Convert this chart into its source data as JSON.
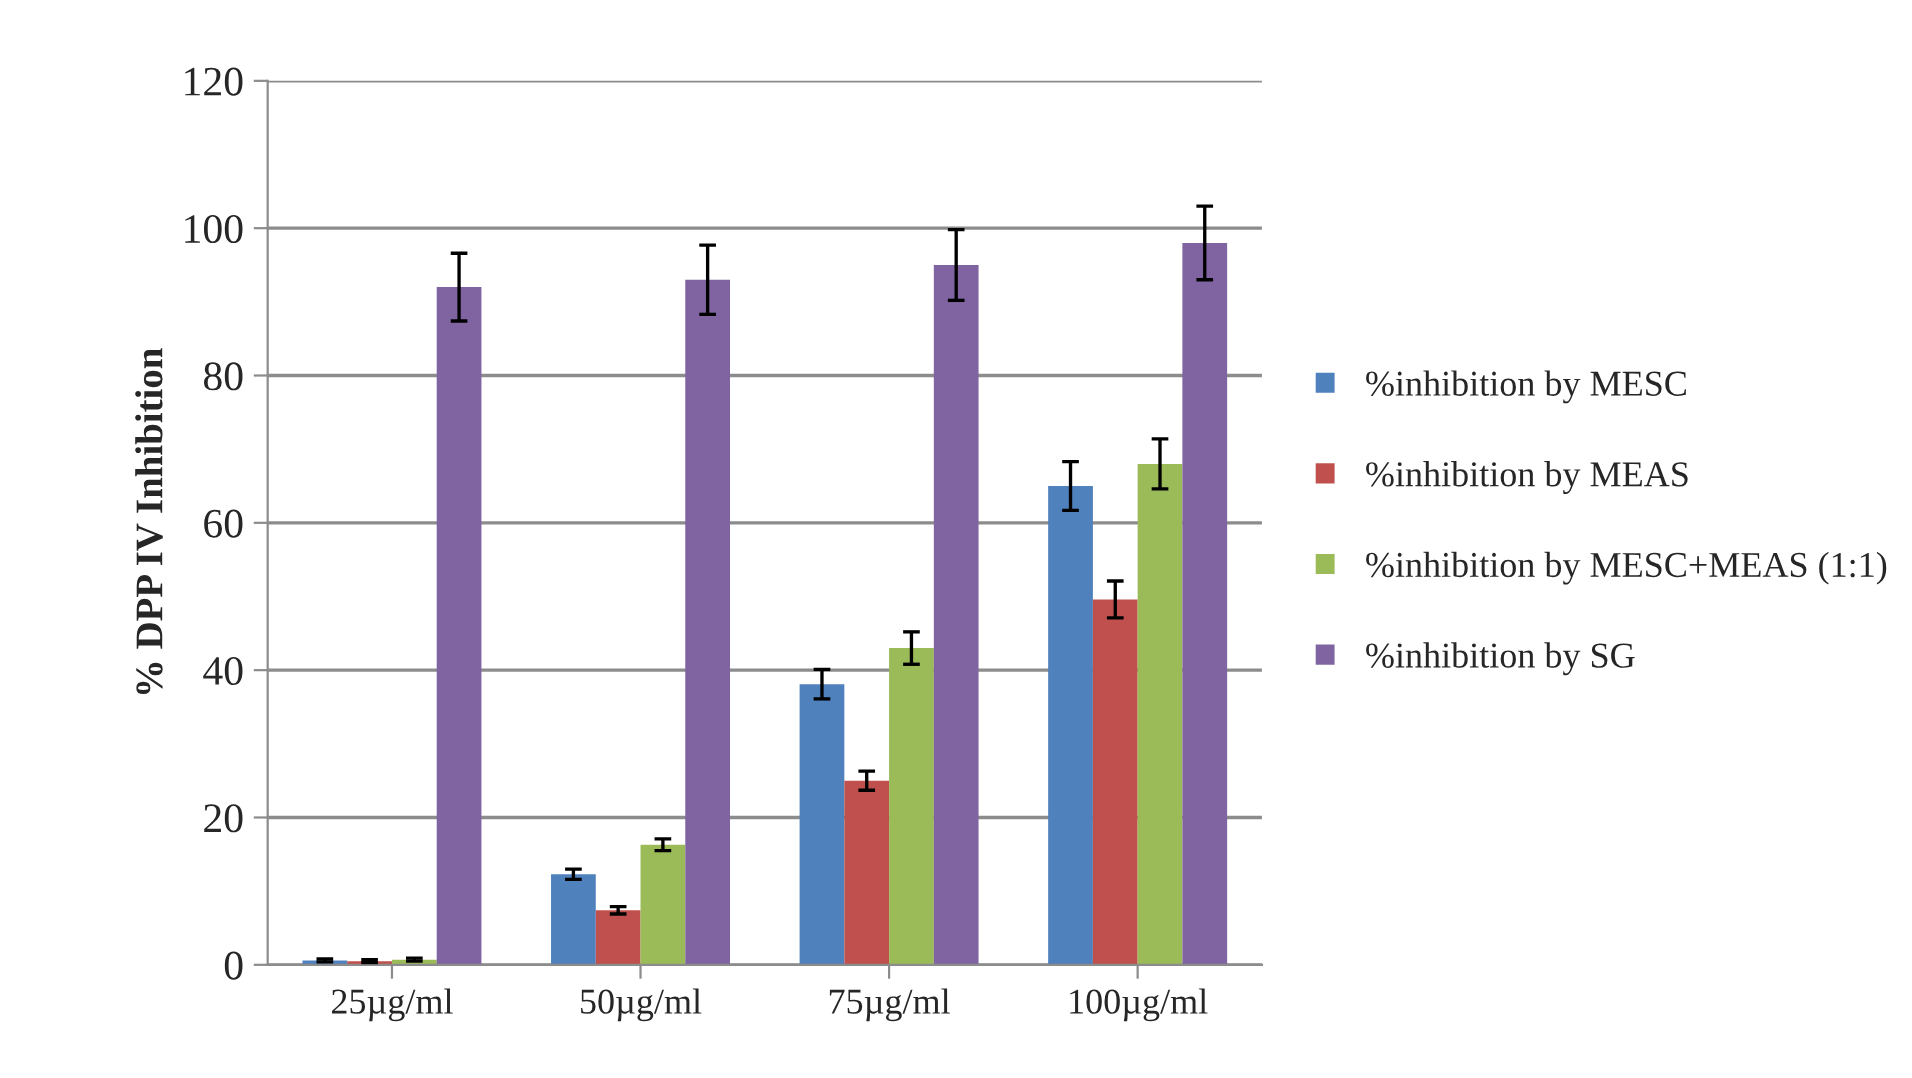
{
  "chart_data": {
    "type": "bar",
    "ylabel": "% DPP IV Inhibition",
    "categories": [
      "25µg/ml",
      "50µg/ml",
      "75µg/ml",
      "100µg/ml"
    ],
    "series": [
      {
        "name": "%inhibition by MESC",
        "color": "#4f81bd",
        "values": [
          0.6,
          12.3,
          38.1,
          65.0
        ],
        "errors": [
          0.2,
          0.7,
          2.0,
          3.3
        ]
      },
      {
        "name": "%inhibition by MEAS",
        "color": "#c0504d",
        "values": [
          0.5,
          7.4,
          25.0,
          49.6
        ],
        "errors": [
          0.2,
          0.5,
          1.3,
          2.5
        ]
      },
      {
        "name": "%inhibition by MESC+MEAS (1:1)",
        "color": "#9bbb59",
        "values": [
          0.7,
          16.3,
          43.0,
          68.0
        ],
        "errors": [
          0.2,
          0.8,
          2.2,
          3.4
        ]
      },
      {
        "name": "%inhibition by SG",
        "color": "#8064a2",
        "values": [
          92,
          93,
          95,
          98
        ],
        "errors": [
          4.6,
          4.7,
          4.8,
          5.0
        ]
      }
    ],
    "ylim": [
      0,
      120
    ],
    "yticks": [
      0,
      20,
      40,
      60,
      80,
      100,
      120
    ],
    "grid": "y",
    "legend": "right"
  }
}
